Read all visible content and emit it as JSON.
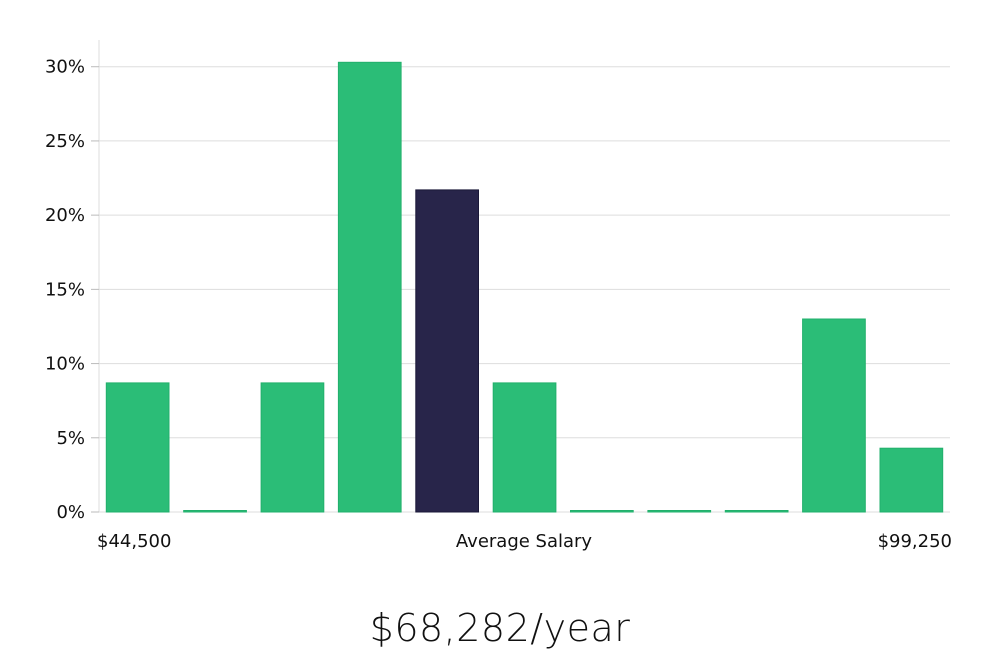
{
  "chart_data": {
    "type": "bar",
    "x_labels": {
      "left": "$44,500",
      "center": "Average Salary",
      "right": "$99,250"
    },
    "values": [
      8.7,
      0,
      8.7,
      30.3,
      21.7,
      8.7,
      0,
      0,
      0,
      13.0,
      4.3
    ],
    "highlight_index": 4,
    "y_ticks": [
      "0%",
      "5%",
      "10%",
      "15%",
      "20%",
      "25%",
      "30%"
    ],
    "y_tick_values": [
      0,
      5,
      10,
      15,
      20,
      25,
      30
    ],
    "ylim": [
      0,
      31.8
    ],
    "grid": true,
    "colors": {
      "bar": "#2bbd77",
      "bar_stroke": "#22b06c",
      "highlight": "#28254a",
      "highlight_stroke": "#1a1838",
      "grid": "#dddddd",
      "axis": "#dddddd"
    }
  },
  "salary_caption": "$68,282/year"
}
